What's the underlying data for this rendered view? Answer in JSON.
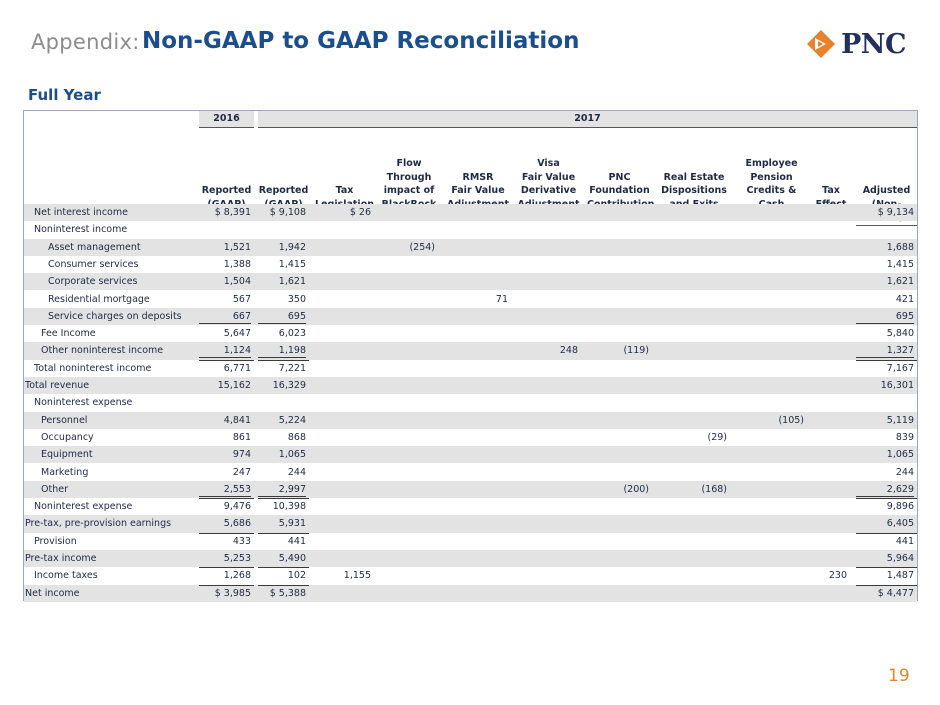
{
  "header": {
    "prefix": "Appendix:",
    "title": "Non-GAAP to GAAP Reconciliation",
    "logo_text": "PNC",
    "brand_color": "#1a4e8c",
    "accent_color": "#e8822a"
  },
  "subtitle": "Full Year",
  "years": {
    "y2016": "2016",
    "y2017": "2017"
  },
  "columns": [
    "Reported (GAAP)",
    "Reported (GAAP)",
    "Tax Legislation",
    "Flow Through impact of BlackRock",
    "RMSR Fair Value Adjustment",
    "Visa Fair Value Derivative Adjustment",
    "PNC Foundation Contribution",
    "Real Estate Dispositions and Exits",
    "Employee Pension Credits & Cash",
    "Tax Effect",
    "Adjusted (Non-GAAP)"
  ],
  "column_lines": [
    [
      "",
      "",
      "",
      "",
      "Reported",
      "(GAAP)"
    ],
    [
      "",
      "",
      "",
      "",
      "Reported",
      "(GAAP)"
    ],
    [
      "",
      "",
      "",
      "",
      "Tax",
      "Legislation"
    ],
    [
      "",
      "",
      "Flow",
      "Through",
      "impact of",
      "BlackRock"
    ],
    [
      "",
      "",
      "",
      "RMSR",
      "Fair Value",
      "Adjustment"
    ],
    [
      "",
      "",
      "Visa",
      "Fair Value",
      "Derivative",
      "Adjustment"
    ],
    [
      "",
      "",
      "",
      "PNC",
      "Foundation",
      "Contribution"
    ],
    [
      "",
      "",
      "",
      "Real Estate",
      "Dispositions",
      "and Exits"
    ],
    [
      "",
      "",
      "Employee",
      "Pension",
      "Credits &",
      "Cash"
    ],
    [
      "",
      "",
      "",
      "",
      "Tax",
      "Effect"
    ],
    [
      "",
      "",
      "",
      "",
      "Adjusted",
      "(Non-GAAP)"
    ]
  ],
  "rows": [
    {
      "label": "Net interest income",
      "indent": 1,
      "values": [
        "$ 8,391",
        "$ 9,108",
        "$ 26",
        "",
        "",
        "",
        "",
        "",
        "",
        "",
        "$ 9,134"
      ]
    },
    {
      "label": "Noninterest income",
      "indent": 1,
      "values": [
        "",
        "",
        "",
        "",
        "",
        "",
        "",
        "",
        "",
        "",
        ""
      ]
    },
    {
      "label": "Asset management",
      "indent": 3,
      "values": [
        "1,521",
        "1,942",
        "",
        "(254)",
        "",
        "",
        "",
        "",
        "",
        "",
        "1,688"
      ]
    },
    {
      "label": "Consumer services",
      "indent": 3,
      "values": [
        "1,388",
        "1,415",
        "",
        "",
        "",
        "",
        "",
        "",
        "",
        "",
        "1,415"
      ]
    },
    {
      "label": "Corporate services",
      "indent": 3,
      "values": [
        "1,504",
        "1,621",
        "",
        "",
        "",
        "",
        "",
        "",
        "",
        "",
        "1,621"
      ]
    },
    {
      "label": "Residential mortgage",
      "indent": 3,
      "values": [
        "567",
        "350",
        "",
        "",
        "71",
        "",
        "",
        "",
        "",
        "",
        "421"
      ]
    },
    {
      "label": "Service charges on deposits",
      "indent": 3,
      "values": [
        "667",
        "695",
        "",
        "",
        "",
        "",
        "",
        "",
        "",
        "",
        "695"
      ]
    },
    {
      "label": "Fee Income",
      "indent": 2,
      "values": [
        "5,647",
        "6,023",
        "",
        "",
        "",
        "",
        "",
        "",
        "",
        "",
        "5,840"
      ]
    },
    {
      "label": "Other noninterest income",
      "indent": 2,
      "values": [
        "1,124",
        "1,198",
        "",
        "",
        "",
        "248",
        "(119)",
        "",
        "",
        "",
        "1,327"
      ]
    },
    {
      "label": "Total noninterest income",
      "indent": 1,
      "values": [
        "6,771",
        "7,221",
        "",
        "",
        "",
        "",
        "",
        "",
        "",
        "",
        "7,167"
      ]
    },
    {
      "label": "Total revenue",
      "indent": 0,
      "values": [
        "15,162",
        "16,329",
        "",
        "",
        "",
        "",
        "",
        "",
        "",
        "",
        "16,301"
      ]
    },
    {
      "label": "Noninterest expense",
      "indent": 1,
      "values": [
        "",
        "",
        "",
        "",
        "",
        "",
        "",
        "",
        "",
        "",
        ""
      ]
    },
    {
      "label": "Personnel",
      "indent": 2,
      "values": [
        "4,841",
        "5,224",
        "",
        "",
        "",
        "",
        "",
        "",
        "(105)",
        "",
        "5,119"
      ]
    },
    {
      "label": "Occupancy",
      "indent": 2,
      "values": [
        "861",
        "868",
        "",
        "",
        "",
        "",
        "",
        "(29)",
        "",
        "",
        "839"
      ]
    },
    {
      "label": "Equipment",
      "indent": 2,
      "values": [
        "974",
        "1,065",
        "",
        "",
        "",
        "",
        "",
        "",
        "",
        "",
        "1,065"
      ]
    },
    {
      "label": "Marketing",
      "indent": 2,
      "values": [
        "247",
        "244",
        "",
        "",
        "",
        "",
        "",
        "",
        "",
        "",
        "244"
      ]
    },
    {
      "label": "Other",
      "indent": 2,
      "values": [
        "2,553",
        "2,997",
        "",
        "",
        "",
        "",
        "(200)",
        "(168)",
        "",
        "",
        "2,629"
      ]
    },
    {
      "label": "Noninterest expense",
      "indent": 1,
      "values": [
        "9,476",
        "10,398",
        "",
        "",
        "",
        "",
        "",
        "",
        "",
        "",
        "9,896"
      ]
    },
    {
      "label": "Pre-tax, pre-provision earnings",
      "indent": 0,
      "values": [
        "5,686",
        "5,931",
        "",
        "",
        "",
        "",
        "",
        "",
        "",
        "",
        "6,405"
      ]
    },
    {
      "label": "Provision",
      "indent": 1,
      "values": [
        "433",
        "441",
        "",
        "",
        "",
        "",
        "",
        "",
        "",
        "",
        "441"
      ]
    },
    {
      "label": "Pre-tax income",
      "indent": 0,
      "values": [
        "5,253",
        "5,490",
        "",
        "",
        "",
        "",
        "",
        "",
        "",
        "",
        "5,964"
      ]
    },
    {
      "label": "Income taxes",
      "indent": 1,
      "values": [
        "1,268",
        "102",
        "1,155",
        "",
        "",
        "",
        "",
        "",
        "",
        "230",
        "1,487"
      ]
    },
    {
      "label": "Net income",
      "indent": 0,
      "values": [
        "$ 3,985",
        "$ 5,388",
        "",
        "",
        "",
        "",
        "",
        "",
        "",
        "",
        "$ 4,477"
      ]
    }
  ],
  "page_number": "19"
}
